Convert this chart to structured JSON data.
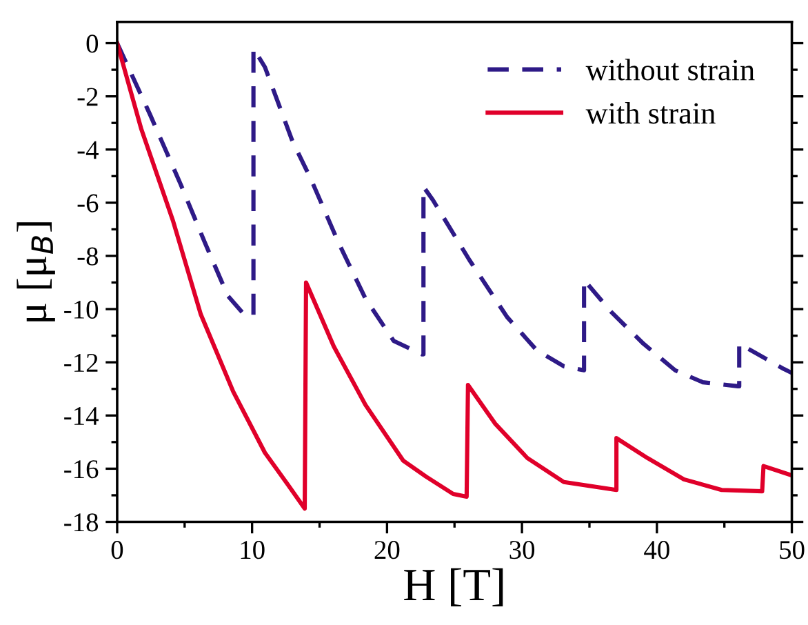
{
  "chart_data": {
    "type": "line",
    "xlabel": "H [T]",
    "ylabel": "μ [μ$_{B}$]",
    "xlim": [
      0,
      50
    ],
    "ylim": [
      -18,
      0.8
    ],
    "xticks": [
      0,
      10,
      20,
      30,
      40,
      50
    ],
    "yticks": [
      -18,
      -16,
      -14,
      -12,
      -10,
      -8,
      -6,
      -4,
      -2,
      0
    ],
    "grid": false,
    "legend": "top right",
    "series": [
      {
        "name": "without strain",
        "color": "#2e1a87",
        "line_style": "dashed",
        "x": [
          0,
          2.45,
          4.7,
          6.5,
          8.2,
          9.4,
          10.1,
          10.1,
          10.95,
          13.0,
          14.35,
          16.4,
          18.4,
          20.5,
          22.6,
          22.7,
          22.7,
          23.4,
          26.1,
          28.9,
          31.1,
          33.1,
          34.6,
          34.6,
          36.6,
          39.0,
          41.35,
          43.4,
          46.0,
          46.1,
          46.1,
          49.4,
          50
        ],
        "values": [
          0,
          -2.7,
          -5.3,
          -7.5,
          -9.5,
          -10.2,
          -10.25,
          -0.2,
          -0.9,
          -3.7,
          -5.1,
          -7.5,
          -9.6,
          -11.2,
          -11.7,
          -11.7,
          -5.4,
          -5.9,
          -8.15,
          -10.3,
          -11.55,
          -12.15,
          -12.3,
          -8.9,
          -10.1,
          -11.3,
          -12.3,
          -12.75,
          -12.9,
          -12.9,
          -11.3,
          -12.25,
          -12.4
        ]
      },
      {
        "name": "with strain",
        "color": "#e0002a",
        "line_style": "solid",
        "x": [
          0,
          1.77,
          4.15,
          6.2,
          8.6,
          10.95,
          12.65,
          13.9,
          14.0,
          16.05,
          18.4,
          21.2,
          22.9,
          24.9,
          25.9,
          26.0,
          28.0,
          30.4,
          33.1,
          37.0,
          37.0,
          39.3,
          42.0,
          44.8,
          47.8,
          47.9,
          50
        ],
        "values": [
          0,
          -3.2,
          -6.7,
          -10.2,
          -13.1,
          -15.4,
          -16.6,
          -17.5,
          -9.0,
          -11.4,
          -13.6,
          -15.7,
          -16.3,
          -16.95,
          -17.05,
          -12.85,
          -14.3,
          -15.6,
          -16.5,
          -16.8,
          -14.85,
          -15.6,
          -16.4,
          -16.8,
          -16.85,
          -15.9,
          -16.25
        ]
      }
    ]
  }
}
